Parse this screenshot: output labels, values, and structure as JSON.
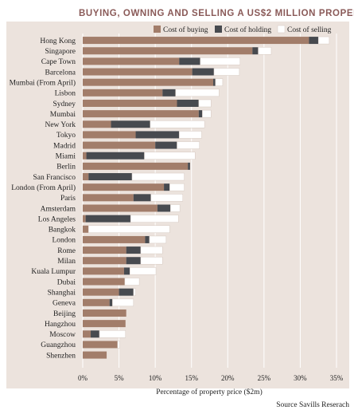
{
  "chart_data": {
    "type": "bar",
    "orientation": "horizontal",
    "stacked": true,
    "title": "BUYING, OWNING AND SELLING A US$2 MILLION PROPERTY",
    "xlabel": "Percentage of property price ($2m)",
    "source": "Source Savills Reserach",
    "xlim": [
      0,
      35
    ],
    "x_ticks": [
      "0%",
      "5%",
      "10%",
      "15%",
      "20%",
      "25%",
      "30%",
      "35%"
    ],
    "x_tick_values": [
      0,
      5,
      10,
      15,
      20,
      25,
      30,
      35
    ],
    "grid": true,
    "legend_position": "top-right",
    "colors": {
      "background": "#ece3dd",
      "gridline": "#ffffff",
      "buying": "#a27d6a",
      "holding": "#474a4f",
      "selling": "#ffffff",
      "selling_stroke": "#d6c9c1",
      "title": "#8a5a58"
    },
    "categories": [
      "Hong Kong",
      "Singapore",
      "Cape Town",
      "Barcelona",
      "Mumbai (From April)",
      "Lisbon",
      "Sydney",
      "Mumbai",
      "New York",
      "Tokyo",
      "Madrid",
      "Miami",
      "Berlin",
      "San Francisco",
      "London (From April)",
      "Paris",
      "Amsterdam",
      "Los Angeles",
      "Bangkok",
      "London",
      "Rome",
      "Milan",
      "Kuala Lumpur",
      "Dubai",
      "Shanghai",
      "Geneva",
      "Beijing",
      "Hangzhou",
      "Moscow",
      "Guangzhou",
      "Shenzhen"
    ],
    "series": [
      {
        "name": "Cost of buying",
        "values": [
          31.2,
          23.4,
          13.3,
          15.1,
          18.0,
          11.0,
          13.0,
          16.0,
          3.9,
          7.3,
          10.0,
          0.5,
          14.5,
          0.8,
          11.2,
          7.0,
          10.3,
          0.4,
          0.8,
          8.6,
          6.0,
          6.0,
          5.7,
          5.8,
          5.0,
          3.7,
          6.0,
          5.9,
          1.1,
          4.8,
          3.3
        ]
      },
      {
        "name": "Cost of holding",
        "values": [
          1.3,
          0.8,
          2.9,
          3.0,
          0.3,
          1.8,
          3.0,
          0.5,
          5.4,
          6.0,
          3.0,
          8.0,
          0.3,
          6.0,
          0.8,
          2.4,
          1.8,
          6.2,
          0.0,
          0.6,
          2.0,
          2.0,
          0.8,
          0.0,
          2.0,
          0.4,
          0.0,
          0.0,
          1.2,
          0.0,
          0.0
        ]
      },
      {
        "name": "Cost of selling",
        "values": [
          1.5,
          1.8,
          5.5,
          3.5,
          1.0,
          6.0,
          1.7,
          1.2,
          7.5,
          3.1,
          3.1,
          7.0,
          0.0,
          7.2,
          2.0,
          4.4,
          1.3,
          6.6,
          11.2,
          2.3,
          3.0,
          3.0,
          3.6,
          2.0,
          0.3,
          2.9,
          0.0,
          0.0,
          3.6,
          0.3,
          0.0
        ]
      }
    ]
  }
}
